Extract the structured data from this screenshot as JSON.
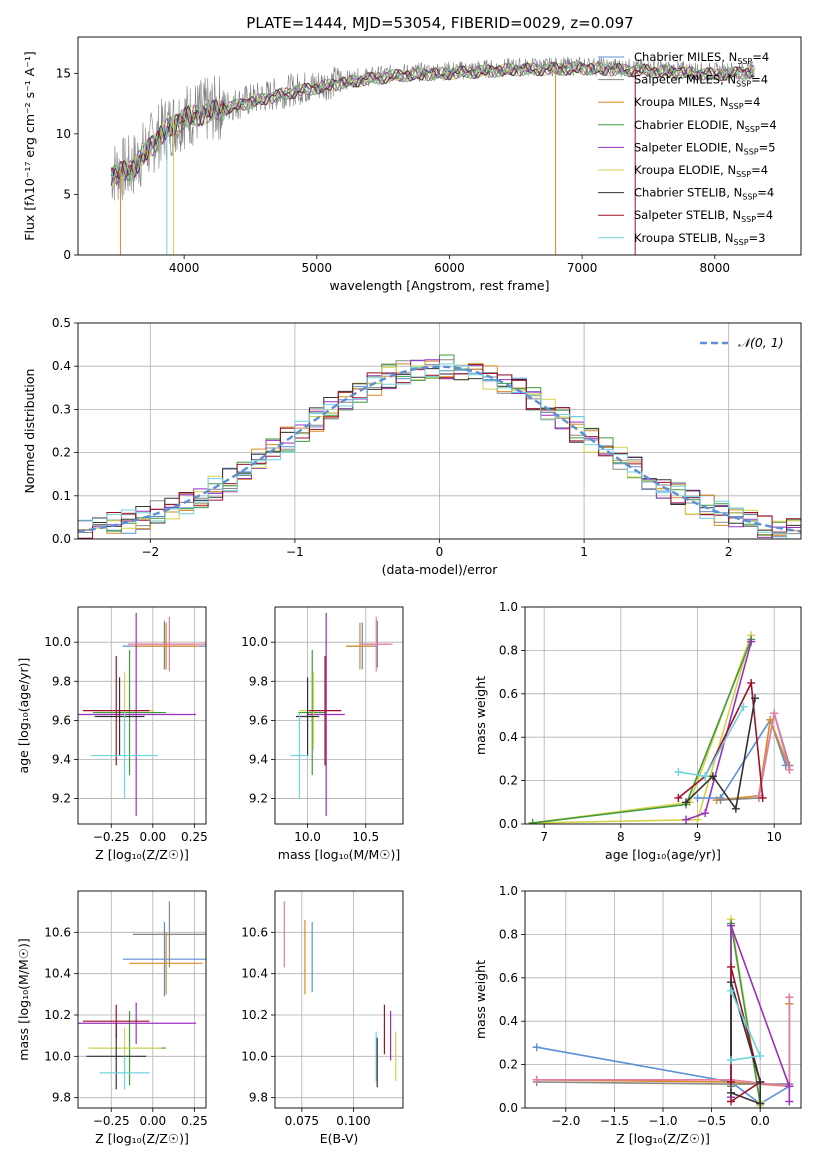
{
  "title": "PLATE=1444, MJD=53054, FIBERID=0029, z=0.097",
  "series_colors": {
    "Chabrier MILES": "#5b8fd6",
    "Salpeter MILES": "#888888",
    "Kroupa MILES": "#d98a22",
    "Chabrier ELODIE": "#3f9b3f",
    "Salpeter ELODIE": "#9b30c0",
    "Kroupa ELODIE": "#d6d24a",
    "Chabrier STELIB": "#333333",
    "Salpeter STELIB": "#a0102a",
    "Kroupa STELIB": "#6ed4dc"
  },
  "chart_data": [
    {
      "id": "spectrum",
      "type": "line",
      "xlabel": "wavelength [Angstrom, rest frame]",
      "ylabel": "Flux [fλ10⁻¹⁷ erg cm⁻² s⁻¹ A⁻¹]",
      "xlim": [
        3200,
        8650
      ],
      "ylim": [
        0,
        18
      ],
      "xticks": [
        4000,
        5000,
        6000,
        7000,
        8000
      ],
      "yticks": [
        0,
        5,
        10,
        15
      ],
      "grid": false,
      "legend_position": "right",
      "data_color": "#808080",
      "data_continuum": [
        [
          3450,
          6.8
        ],
        [
          3600,
          7.2
        ],
        [
          3700,
          8.5
        ],
        [
          3850,
          10.4
        ],
        [
          4000,
          11.5
        ],
        [
          4200,
          12.0
        ],
        [
          4500,
          12.8
        ],
        [
          4800,
          13.6
        ],
        [
          5000,
          14.0
        ],
        [
          5300,
          14.6
        ],
        [
          5600,
          15.0
        ],
        [
          6000,
          15.2
        ],
        [
          6500,
          15.5
        ],
        [
          7000,
          15.6
        ],
        [
          7500,
          15.4
        ],
        [
          8000,
          15.1
        ],
        [
          8300,
          15.3
        ]
      ],
      "series": [
        {
          "name": "Chabrier MILES",
          "label": "Chabrier MILES, N",
          "sub": "SSP",
          "suffix": "=4"
        },
        {
          "name": "Salpeter MILES",
          "label": "Salpeter MILES, N",
          "sub": "SSP",
          "suffix": "=4"
        },
        {
          "name": "Kroupa MILES",
          "label": "Kroupa MILES, N",
          "sub": "SSP",
          "suffix": "=4"
        },
        {
          "name": "Chabrier ELODIE",
          "label": "Chabrier ELODIE, N",
          "sub": "SSP",
          "suffix": "=4"
        },
        {
          "name": "Salpeter ELODIE",
          "label": "Salpeter ELODIE, N",
          "sub": "SSP",
          "suffix": "=5"
        },
        {
          "name": "Kroupa ELODIE",
          "label": "Kroupa ELODIE, N",
          "sub": "SSP",
          "suffix": "=4"
        },
        {
          "name": "Chabrier STELIB",
          "label": "Chabrier STELIB, N",
          "sub": "SSP",
          "suffix": "=4"
        },
        {
          "name": "Salpeter STELIB",
          "label": "Salpeter STELIB, N",
          "sub": "SSP",
          "suffix": "=4"
        },
        {
          "name": "Kroupa STELIB",
          "label": "Kroupa STELIB, N",
          "sub": "SSP",
          "suffix": "=3"
        }
      ]
    },
    {
      "id": "residuals",
      "type": "histogram",
      "xlabel": "(data-model)/error",
      "ylabel": "Normed distribution",
      "xlim": [
        -2.5,
        2.5
      ],
      "ylim": [
        0,
        0.5
      ],
      "xticks": [
        -2,
        -1,
        0,
        1,
        2
      ],
      "yticks": [
        0.0,
        0.1,
        0.2,
        0.3,
        0.4,
        0.5
      ],
      "grid": true,
      "bin_width": 0.1,
      "reference_curve": {
        "label": "𝒩(0, 1)",
        "mean": 0,
        "sigma": 1,
        "color": "#5b8fd6",
        "style": "dashed"
      },
      "legend_position": "top-right"
    },
    {
      "id": "age_vs_Z",
      "type": "errorbar",
      "xlabel": "Z [log₁₀(Z/Z☉)]",
      "ylabel": "age  [log₁₀(age/yr)]",
      "xlim": [
        -0.45,
        0.32
      ],
      "ylim": [
        9.07,
        10.18
      ],
      "xticks": [
        -0.25,
        0.0,
        0.25
      ],
      "xticklabels": [
        "−0.25",
        "0.00",
        "0.25"
      ],
      "yticks": [
        9.2,
        9.4,
        9.6,
        9.8,
        10.0
      ],
      "grid": true,
      "points": [
        {
          "series": "Chabrier MILES",
          "x": 0.07,
          "xerr": 0.25,
          "y": 9.98,
          "yerr": 0.12
        },
        {
          "series": "Salpeter MILES",
          "x": 0.07,
          "xerr": 0.18,
          "y": 9.99,
          "yerr": 0.12
        },
        {
          "series": "Kroupa MILES",
          "x": 0.08,
          "xerr": 0.2,
          "y": 9.98,
          "yerr": 0.12
        },
        {
          "series": "Chabrier ELODIE",
          "x": -0.14,
          "xerr": 0.22,
          "y": 9.64,
          "yerr": 0.32
        },
        {
          "series": "Salpeter ELODIE",
          "x": -0.1,
          "xerr": 0.36,
          "y": 9.63,
          "yerr": 0.52
        },
        {
          "series": "Kroupa ELODIE",
          "x": -0.17,
          "xerr": 0.18,
          "y": 9.65,
          "yerr": 0.2
        },
        {
          "series": "Chabrier STELIB",
          "x": -0.2,
          "xerr": 0.15,
          "y": 9.62,
          "yerr": 0.2
        },
        {
          "series": "Salpeter STELIB",
          "x": -0.22,
          "xerr": 0.2,
          "y": 9.65,
          "yerr": 0.28
        },
        {
          "series": "Kroupa STELIB",
          "x": -0.17,
          "xerr": 0.2,
          "y": 9.42,
          "yerr": 0.22
        },
        {
          "series": "pink",
          "x": 0.1,
          "xerr": 0.25,
          "y": 9.99,
          "yerr": 0.14
        }
      ]
    },
    {
      "id": "age_vs_mass",
      "type": "errorbar",
      "xlabel": "mass [log₁₀(M/M☉)]",
      "ylabel": "",
      "xlim": [
        9.72,
        10.82
      ],
      "ylim": [
        9.07,
        10.18
      ],
      "xticks": [
        10.0,
        10.5
      ],
      "xticklabels": [
        "10.0",
        "10.5"
      ],
      "yticks": [
        9.2,
        9.4,
        9.6,
        9.8,
        10.0
      ],
      "grid": true,
      "points": [
        {
          "series": "Chabrier MILES",
          "x": 10.47,
          "xerr": 0.13,
          "y": 9.98,
          "yerr": 0.12
        },
        {
          "series": "Salpeter MILES",
          "x": 10.6,
          "xerr": 0.1,
          "y": 9.99,
          "yerr": 0.12
        },
        {
          "series": "Kroupa MILES",
          "x": 10.45,
          "xerr": 0.12,
          "y": 9.98,
          "yerr": 0.12
        },
        {
          "series": "Chabrier ELODIE",
          "x": 10.04,
          "xerr": 0.12,
          "y": 9.64,
          "yerr": 0.32
        },
        {
          "series": "Salpeter ELODIE",
          "x": 10.16,
          "xerr": 0.16,
          "y": 9.63,
          "yerr": 0.52
        },
        {
          "series": "Kroupa ELODIE",
          "x": 10.05,
          "xerr": 0.12,
          "y": 9.65,
          "yerr": 0.2
        },
        {
          "series": "Chabrier STELIB",
          "x": 10.0,
          "xerr": 0.1,
          "y": 9.62,
          "yerr": 0.2
        },
        {
          "series": "Salpeter STELIB",
          "x": 10.15,
          "xerr": 0.14,
          "y": 9.65,
          "yerr": 0.28
        },
        {
          "series": "Kroupa STELIB",
          "x": 9.93,
          "xerr": 0.08,
          "y": 9.42,
          "yerr": 0.22
        },
        {
          "series": "pink",
          "x": 10.59,
          "xerr": 0.14,
          "y": 9.99,
          "yerr": 0.14
        }
      ]
    },
    {
      "id": "weight_vs_age",
      "type": "line",
      "xlabel": "age  [log₁₀(age/yr)]",
      "ylabel": "mass weight",
      "xlim": [
        6.75,
        10.35
      ],
      "ylim": [
        0,
        1
      ],
      "xticks": [
        7,
        8,
        9,
        10
      ],
      "yticks": [
        0.0,
        0.2,
        0.4,
        0.6,
        0.8,
        1.0
      ],
      "grid": true,
      "series": [
        {
          "series": "Kroupa ELODIE",
          "x": [
            6.85,
            8.9,
            9.7,
            9.0,
            6.85
          ],
          "y": [
            0.005,
            0.1,
            0.87,
            0.02,
            0.005
          ]
        },
        {
          "series": "Chabrier ELODIE",
          "x": [
            6.85,
            8.85,
            9.7
          ],
          "y": [
            0.005,
            0.09,
            0.85
          ]
        },
        {
          "series": "Salpeter ELODIE",
          "x": [
            8.85,
            9.1,
            9.7
          ],
          "y": [
            0.02,
            0.05,
            0.84
          ]
        },
        {
          "series": "Chabrier MILES",
          "x": [
            9.0,
            9.3,
            9.95,
            10.15
          ],
          "y": [
            0.12,
            0.12,
            0.48,
            0.27
          ]
        },
        {
          "series": "Kroupa MILES",
          "x": [
            9.25,
            9.8,
            9.95,
            10.2
          ],
          "y": [
            0.11,
            0.13,
            0.48,
            0.25
          ]
        },
        {
          "series": "Salpeter MILES",
          "x": [
            9.3,
            9.8,
            10.0,
            10.2
          ],
          "y": [
            0.11,
            0.12,
            0.51,
            0.27
          ]
        },
        {
          "series": "pink",
          "x": [
            9.8,
            10.0,
            10.2
          ],
          "y": [
            0.13,
            0.51,
            0.25
          ]
        },
        {
          "series": "Salpeter STELIB",
          "x": [
            8.75,
            9.1,
            9.7,
            9.85
          ],
          "y": [
            0.12,
            0.22,
            0.65,
            0.12
          ]
        },
        {
          "series": "Chabrier STELIB",
          "x": [
            8.85,
            9.2,
            9.5,
            9.75
          ],
          "y": [
            0.1,
            0.22,
            0.07,
            0.58
          ]
        },
        {
          "series": "Kroupa STELIB",
          "x": [
            8.75,
            9.1,
            9.6
          ],
          "y": [
            0.24,
            0.22,
            0.54
          ]
        }
      ]
    },
    {
      "id": "mass_vs_Z",
      "type": "errorbar",
      "xlabel": "Z [log₁₀(Z/Z☉)]",
      "ylabel": "mass [log₁₀(M/M☉)]",
      "xlim": [
        -0.45,
        0.32
      ],
      "ylim": [
        9.75,
        10.8
      ],
      "xticks": [
        -0.25,
        0.0,
        0.25
      ],
      "xticklabels": [
        "−0.25",
        "0.00",
        "0.25"
      ],
      "yticks": [
        9.8,
        10.0,
        10.2,
        10.4,
        10.6
      ],
      "grid": true,
      "points": [
        {
          "series": "Chabrier MILES",
          "x": 0.07,
          "xerr": 0.25,
          "y": 10.47,
          "yerr": 0.18
        },
        {
          "series": "Salpeter MILES",
          "x": 0.1,
          "xerr": 0.22,
          "y": 10.59,
          "yerr": 0.16
        },
        {
          "series": "Kroupa MILES",
          "x": 0.08,
          "xerr": 0.22,
          "y": 10.45,
          "yerr": 0.15
        },
        {
          "series": "Chabrier ELODIE",
          "x": -0.14,
          "xerr": 0.22,
          "y": 10.04,
          "yerr": 0.18
        },
        {
          "series": "Salpeter ELODIE",
          "x": -0.1,
          "xerr": 0.36,
          "y": 10.16,
          "yerr": 0.1
        },
        {
          "series": "Kroupa ELODIE",
          "x": -0.17,
          "xerr": 0.22,
          "y": 10.04,
          "yerr": 0.1
        },
        {
          "series": "Chabrier STELIB",
          "x": -0.22,
          "xerr": 0.18,
          "y": 10.0,
          "yerr": 0.16
        },
        {
          "series": "Salpeter STELIB",
          "x": -0.22,
          "xerr": 0.2,
          "y": 10.17,
          "yerr": 0.08
        },
        {
          "series": "Kroupa STELIB",
          "x": -0.17,
          "xerr": 0.15,
          "y": 9.92,
          "yerr": 0.08
        }
      ]
    },
    {
      "id": "mass_vs_EBV",
      "type": "errorbar",
      "xlabel": "E(B-V)",
      "ylabel": "",
      "xlim": [
        0.062,
        0.124
      ],
      "ylim": [
        9.75,
        10.8
      ],
      "xticks": [
        0.075,
        0.1
      ],
      "xticklabels": [
        "0.075",
        "0.100"
      ],
      "yticks": [
        9.8,
        10.0,
        10.2,
        10.4,
        10.6
      ],
      "grid": true,
      "points": [
        {
          "series": "pink",
          "x": 0.0665,
          "y": 10.59,
          "yerr": 0.16
        },
        {
          "series": "Kroupa MILES",
          "x": 0.0765,
          "y": 10.48,
          "yerr": 0.18
        },
        {
          "series": "Chabrier MILES",
          "x": 0.08,
          "y": 10.48,
          "yerr": 0.17
        },
        {
          "series": "Kroupa STELIB",
          "x": 0.111,
          "y": 10.0,
          "yerr": 0.12
        },
        {
          "series": "Chabrier STELIB",
          "x": 0.1115,
          "y": 9.97,
          "yerr": 0.12
        },
        {
          "series": "Salpeter STELIB",
          "x": 0.115,
          "y": 10.13,
          "yerr": 0.12
        },
        {
          "series": "Salpeter ELODIE",
          "x": 0.118,
          "y": 10.1,
          "yerr": 0.12
        },
        {
          "series": "Kroupa ELODIE",
          "x": 0.1205,
          "y": 10.0,
          "yerr": 0.12
        }
      ]
    },
    {
      "id": "weight_vs_Z",
      "type": "line",
      "xlabel": "Z [log₁₀(Z/Z☉)]",
      "ylabel": "mass weight",
      "xlim": [
        -2.42,
        0.42
      ],
      "ylim": [
        0,
        1
      ],
      "xticks": [
        -2.0,
        -1.5,
        -1.0,
        -0.5,
        0.0
      ],
      "xticklabels": [
        "−2.0",
        "−1.5",
        "−1.0",
        "−0.5",
        "0.0"
      ],
      "yticks": [
        0.0,
        0.2,
        0.4,
        0.6,
        0.8,
        1.0
      ],
      "grid": true,
      "series": [
        {
          "series": "Chabrier MILES",
          "x": [
            -2.3,
            -0.3,
            0.0,
            0.3,
            0.3
          ],
          "y": [
            0.28,
            0.12,
            0.02,
            0.1,
            0.48
          ]
        },
        {
          "series": "Kroupa MILES",
          "x": [
            -2.3,
            -0.3,
            0.3,
            0.3
          ],
          "y": [
            0.13,
            0.12,
            0.1,
            0.48
          ]
        },
        {
          "series": "Salpeter MILES",
          "x": [
            -2.3,
            -0.3,
            0.3,
            0.3
          ],
          "y": [
            0.12,
            0.11,
            0.11,
            0.51
          ]
        },
        {
          "series": "pink",
          "x": [
            -2.3,
            -0.3,
            0.3,
            0.3
          ],
          "y": [
            0.13,
            0.13,
            0.1,
            0.51
          ]
        },
        {
          "series": "Kroupa ELODIE",
          "x": [
            -0.3,
            -0.3,
            0.0,
            0.0
          ],
          "y": [
            0.05,
            0.87,
            0.03,
            0.01
          ]
        },
        {
          "series": "Chabrier ELODIE",
          "x": [
            -0.3,
            -0.3,
            0.0
          ],
          "y": [
            0.1,
            0.85,
            0.02
          ]
        },
        {
          "series": "Salpeter ELODIE",
          "x": [
            -0.3,
            -0.3,
            0.3,
            0.3
          ],
          "y": [
            0.05,
            0.84,
            0.1,
            0.03
          ]
        },
        {
          "series": "Salpeter STELIB",
          "x": [
            -0.3,
            -0.3,
            0.0,
            -0.3
          ],
          "y": [
            0.12,
            0.65,
            0.12,
            0.03
          ]
        },
        {
          "series": "Chabrier STELIB",
          "x": [
            -0.3,
            -0.3,
            0.0,
            0.0,
            -0.3
          ],
          "y": [
            0.22,
            0.58,
            0.12,
            0.02,
            0.07
          ]
        },
        {
          "series": "Kroupa STELIB",
          "x": [
            -0.3,
            0.0,
            -0.3
          ],
          "y": [
            0.54,
            0.24,
            0.22
          ]
        }
      ]
    }
  ]
}
